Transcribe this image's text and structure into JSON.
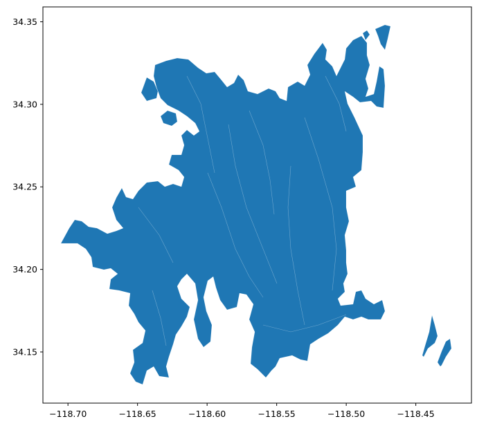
{
  "chart_data": {
    "type": "map",
    "title": "",
    "xlabel": "",
    "ylabel": "",
    "xlim": [
      -118.718,
      -118.41
    ],
    "ylim": [
      34.119,
      34.359
    ],
    "x_ticks": [
      -118.7,
      -118.65,
      -118.6,
      -118.55,
      -118.5,
      -118.45
    ],
    "x_tick_labels": [
      "−118.70",
      "−118.65",
      "−118.60",
      "−118.55",
      "−118.50",
      "−118.45"
    ],
    "y_ticks": [
      34.15,
      34.2,
      34.25,
      34.3,
      34.35
    ],
    "y_tick_labels": [
      "34.15",
      "34.20",
      "34.25",
      "34.30",
      "34.35"
    ],
    "grid": false,
    "fill_color": "#1f77b4",
    "edge_color": "#ffffff",
    "geometry_description": "Cluster of adjacent watershed/sub-basin polygons filled in a single blue color, with two small isolated polygons to the east near -118.43"
  }
}
